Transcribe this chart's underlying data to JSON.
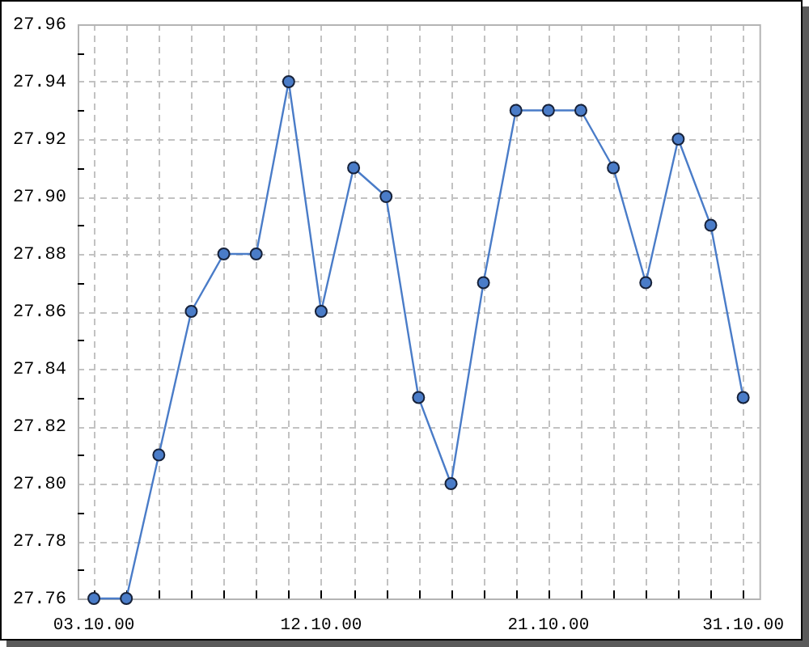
{
  "chart_data": {
    "type": "line",
    "categories": [
      "03.10.00",
      null,
      null,
      null,
      null,
      null,
      null,
      "12.10.00",
      null,
      null,
      null,
      null,
      null,
      null,
      "21.10.00",
      null,
      null,
      null,
      null,
      null,
      "31.10.00"
    ],
    "values": [
      27.76,
      27.76,
      27.81,
      27.86,
      27.88,
      27.88,
      27.94,
      27.86,
      27.91,
      27.9,
      27.83,
      27.8,
      27.87,
      27.93,
      27.93,
      27.93,
      27.91,
      27.87,
      27.92,
      27.89,
      27.83
    ],
    "color": "#4a7cc8",
    "ylim": [
      27.76,
      27.96
    ],
    "yticks": [
      27.76,
      {
        "value": 27.77,
        "label": null
      },
      27.78,
      {
        "value": 27.79,
        "label": null
      },
      {
        "value": 27.8,
        "label": "27.80"
      },
      {
        "value": 27.81,
        "label": null
      },
      27.82,
      {
        "value": 27.83,
        "label": null
      },
      27.84,
      {
        "value": 27.85,
        "label": null
      },
      27.86,
      {
        "value": 27.87,
        "label": null
      },
      27.88,
      {
        "value": 27.89,
        "label": null
      },
      {
        "value": 27.9,
        "label": "27.90"
      },
      {
        "value": 27.91,
        "label": null
      },
      27.92,
      {
        "value": 27.93,
        "label": null
      },
      27.94,
      {
        "value": 27.95,
        "label": null
      },
      27.96
    ],
    "grid": true,
    "marker": "circle",
    "line_style": "solid"
  }
}
